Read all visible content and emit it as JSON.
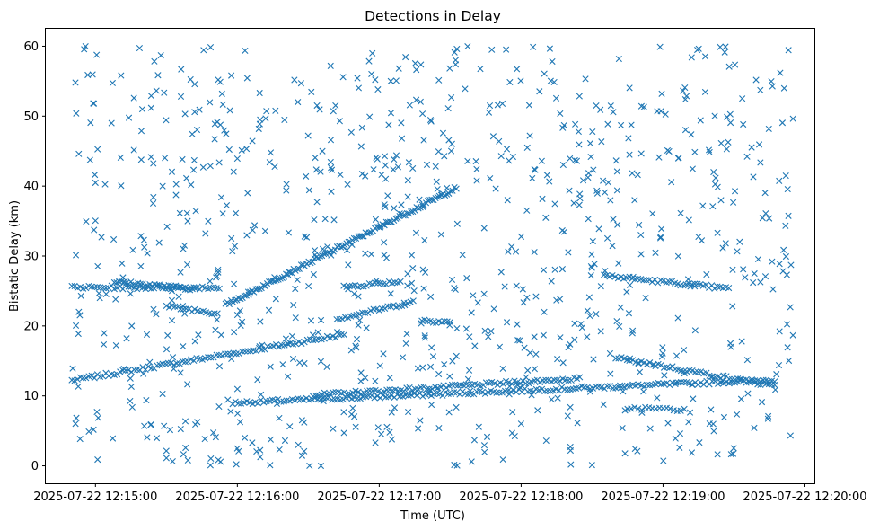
{
  "chart_data": {
    "type": "scatter",
    "title": "Detections in Delay",
    "xlabel": "Time (UTC)",
    "ylabel": "Bistatic Delay (km)",
    "marker": "x",
    "color": "#1f77b4",
    "grid": false,
    "legend": "none",
    "x_axis": {
      "kind": "time",
      "range": [
        "2025-07-22 12:14:39",
        "2025-07-22 12:20:04"
      ],
      "ticks": [
        "2025-07-22 12:15:00",
        "2025-07-22 12:16:00",
        "2025-07-22 12:17:00",
        "2025-07-22 12:18:00",
        "2025-07-22 12:19:00",
        "2025-07-22 12:20:00"
      ]
    },
    "y_axis": {
      "range": [
        -2.5,
        62.5
      ],
      "ticks": [
        0,
        10,
        20,
        30,
        40,
        50,
        60
      ]
    },
    "tracks": [
      {
        "t_start": "2025-07-22 12:14:50",
        "t_end": "2025-07-22 12:16:46",
        "y_start": 12.2,
        "y_end": 18.8,
        "step_s": 1.2
      },
      {
        "t_start": "2025-07-22 12:15:58",
        "t_end": "2025-07-22 12:19:48",
        "y_start": 9.0,
        "y_end": 12.3,
        "step_s": 1.2
      },
      {
        "t_start": "2025-07-22 12:16:32",
        "t_end": "2025-07-22 12:18:25",
        "y_start": 10.1,
        "y_end": 12.5,
        "step_s": 1.2
      },
      {
        "t_start": "2025-07-22 12:15:55",
        "t_end": "2025-07-22 12:17:33",
        "y_start": 23.0,
        "y_end": 39.8,
        "step_s": 0.8
      },
      {
        "t_start": "2025-07-22 12:14:50",
        "t_end": "2025-07-22 12:15:53",
        "y_start": 25.5,
        "y_end": 25.5,
        "step_s": 1.2
      },
      {
        "t_start": "2025-07-22 12:15:08",
        "t_end": "2025-07-22 12:15:42",
        "y_start": 26.3,
        "y_end": 25.3,
        "step_s": 1.0
      },
      {
        "t_start": "2025-07-22 12:15:30",
        "t_end": "2025-07-22 12:15:52",
        "y_start": 22.8,
        "y_end": 21.8,
        "step_s": 1.2
      },
      {
        "t_start": "2025-07-22 12:16:42",
        "t_end": "2025-07-22 12:17:15",
        "y_start": 21.0,
        "y_end": 23.5,
        "step_s": 1.2
      },
      {
        "t_start": "2025-07-22 12:16:45",
        "t_end": "2025-07-22 12:17:10",
        "y_start": 25.6,
        "y_end": 26.4,
        "step_s": 1.2
      },
      {
        "t_start": "2025-07-22 12:17:18",
        "t_end": "2025-07-22 12:17:30",
        "y_start": 20.8,
        "y_end": 20.6,
        "step_s": 1.2
      },
      {
        "t_start": "2025-07-22 12:18:35",
        "t_end": "2025-07-22 12:19:28",
        "y_start": 27.2,
        "y_end": 25.3,
        "step_s": 1.2
      },
      {
        "t_start": "2025-07-22 12:18:40",
        "t_end": "2025-07-22 12:19:48",
        "y_start": 15.5,
        "y_end": 11.3,
        "step_s": 1.2
      },
      {
        "t_start": "2025-07-22 12:18:45",
        "t_end": "2025-07-22 12:19:10",
        "y_start": 8.3,
        "y_end": 8.0,
        "step_s": 1.5
      }
    ],
    "scatter_noise": {
      "count": 900,
      "y_range": [
        0,
        60
      ]
    }
  }
}
